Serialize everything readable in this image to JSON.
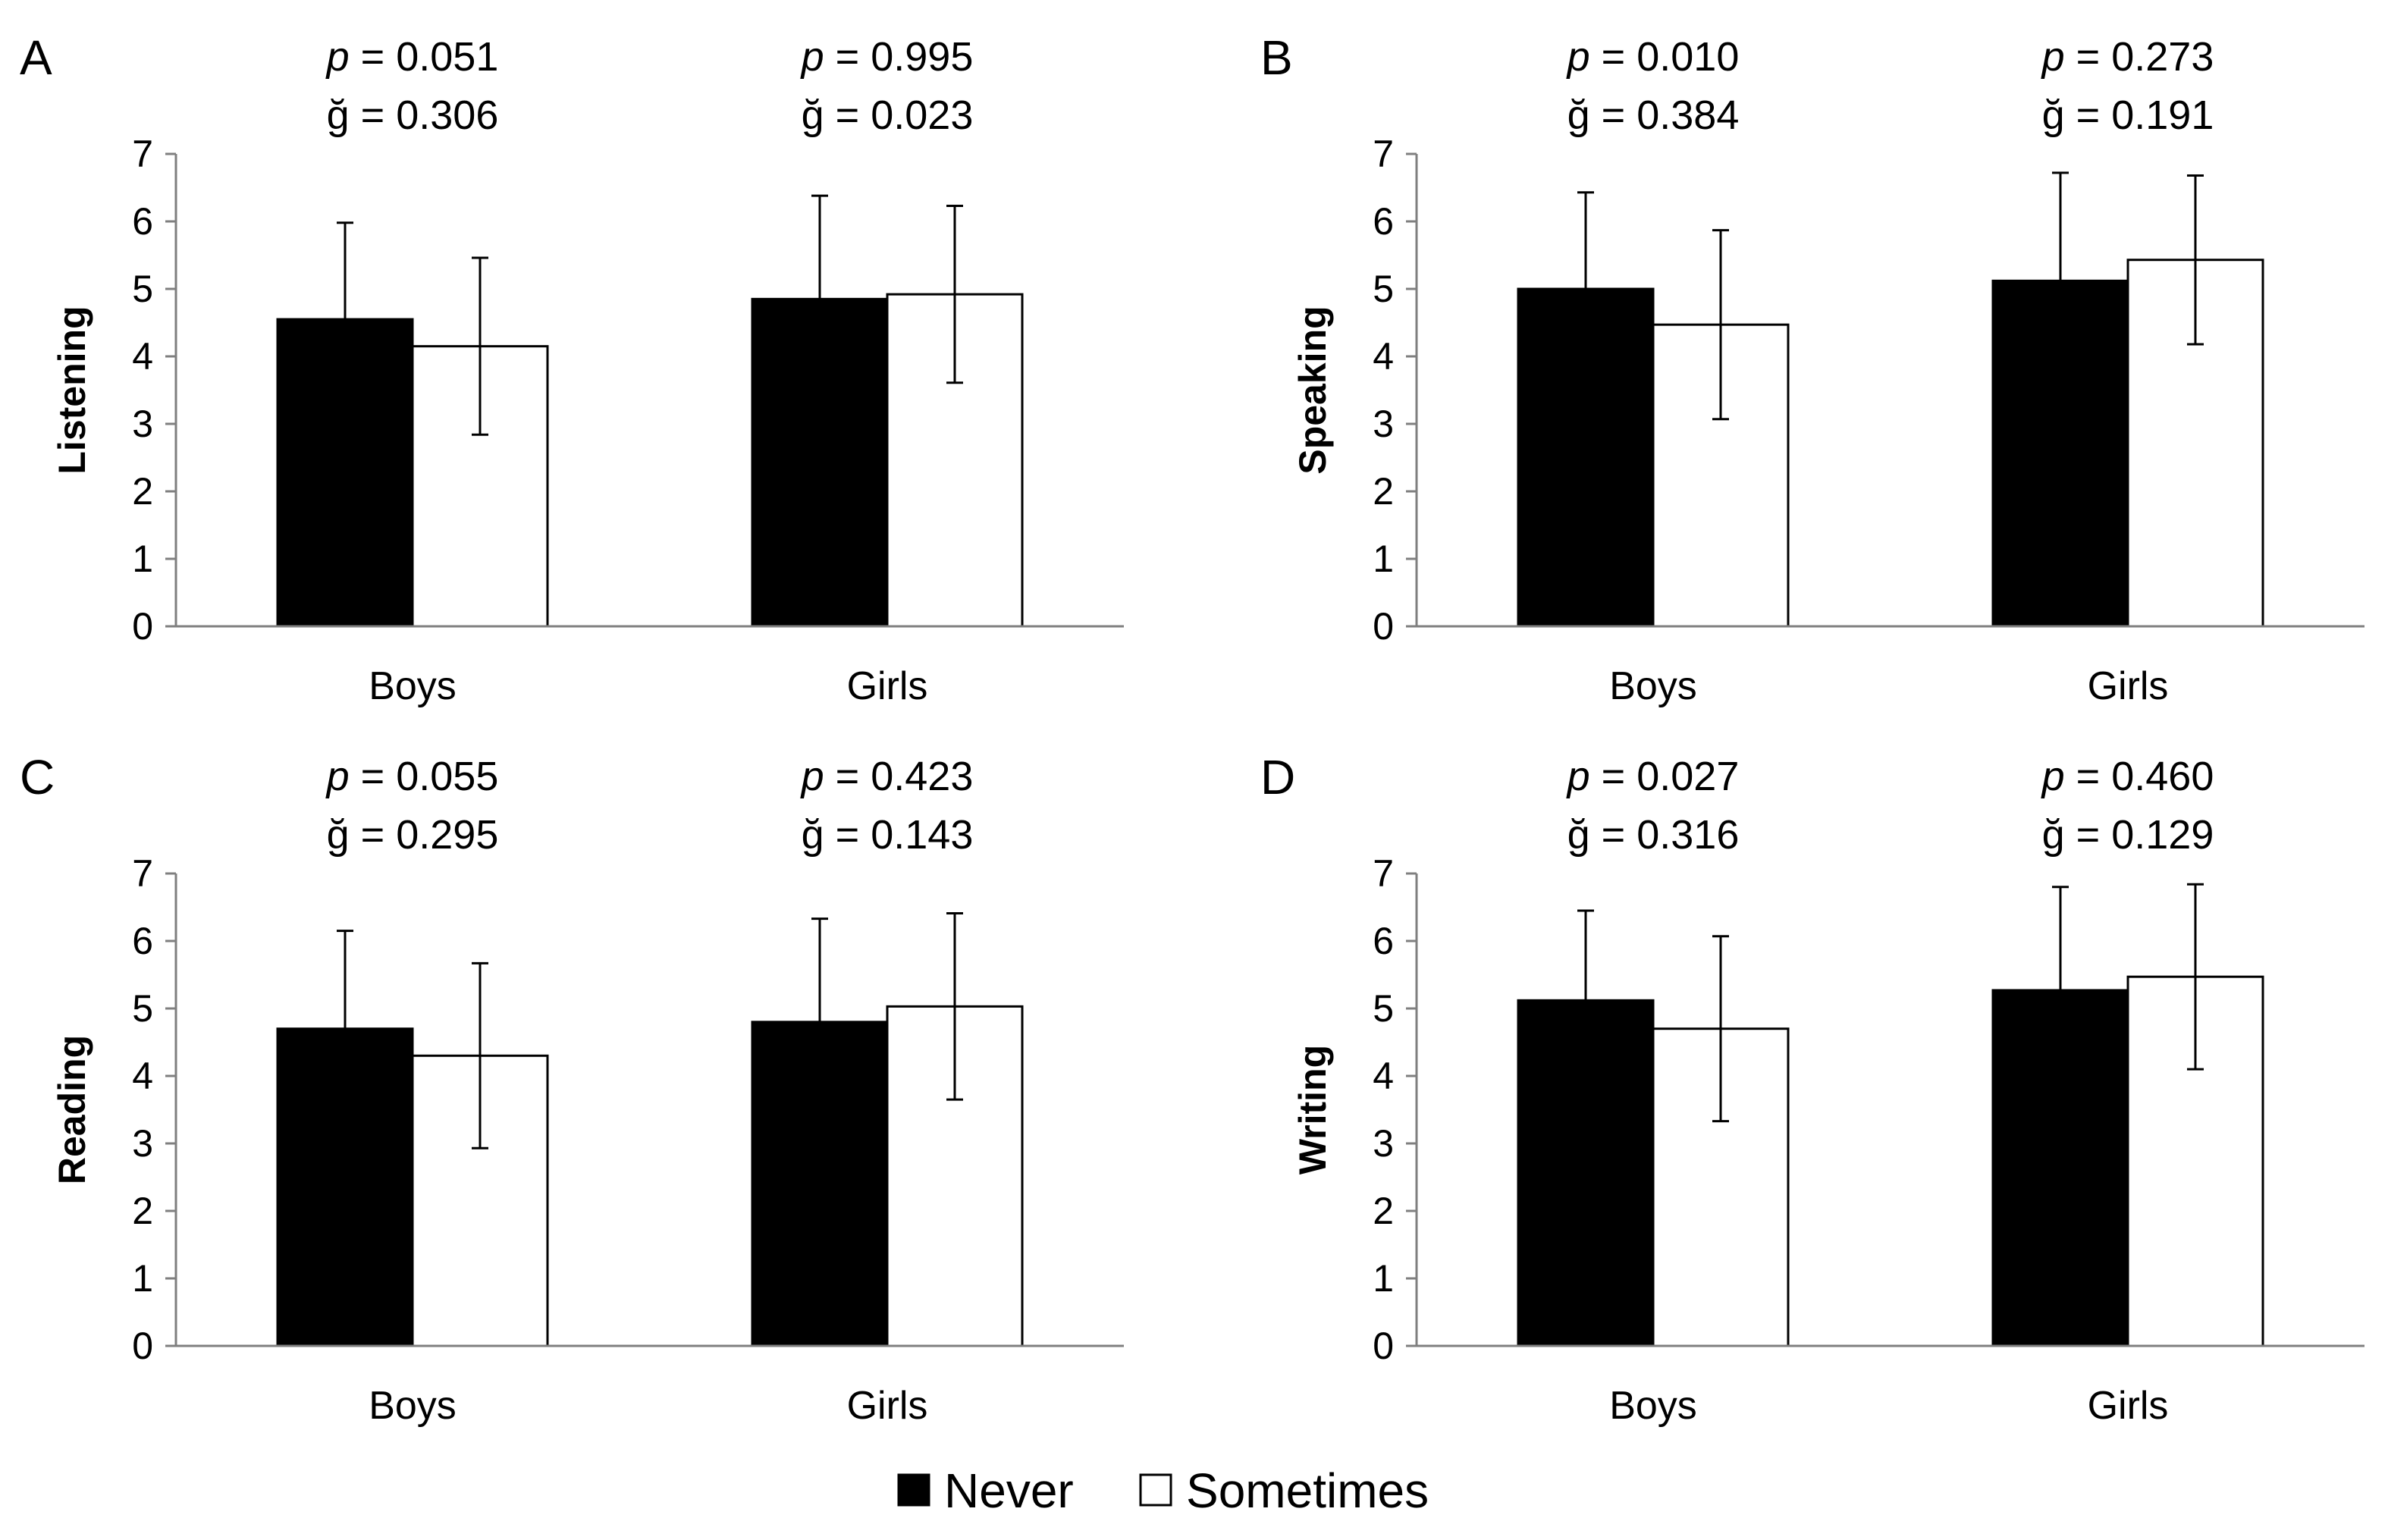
{
  "chart_data": [
    {
      "type": "bar",
      "panel": "A",
      "ylabel": "Listening",
      "categories": [
        "Boys",
        "Girls"
      ],
      "ylim": [
        0,
        7
      ],
      "yticks": [
        "0",
        "1",
        "2",
        "3",
        "4",
        "5",
        "6",
        "7"
      ],
      "series": [
        {
          "name": "Never",
          "values": [
            4.55,
            4.85
          ],
          "error": [
            1.43,
            1.53
          ]
        },
        {
          "name": "Sometimes",
          "values": [
            4.15,
            4.92
          ],
          "error": [
            1.31,
            1.31
          ]
        }
      ],
      "annotations": [
        {
          "p_label": "p",
          "p_rest": " = 0.051",
          "g": "ğ = 0.306"
        },
        {
          "p_label": "p",
          "p_rest": " = 0.995",
          "g": "ğ = 0.023"
        }
      ]
    },
    {
      "type": "bar",
      "panel": "B",
      "ylabel": "Speaking",
      "categories": [
        "Boys",
        "Girls"
      ],
      "ylim": [
        0,
        7
      ],
      "yticks": [
        "0",
        "1",
        "2",
        "3",
        "4",
        "5",
        "6",
        "7"
      ],
      "series": [
        {
          "name": "Never",
          "values": [
            5.0,
            5.12
          ],
          "error": [
            1.43,
            1.6
          ]
        },
        {
          "name": "Sometimes",
          "values": [
            4.47,
            5.43
          ],
          "error": [
            1.4,
            1.25
          ]
        }
      ],
      "annotations": [
        {
          "p_label": "p",
          "p_rest": " = 0.010",
          "g": "ğ = 0.384"
        },
        {
          "p_label": "p",
          "p_rest": " = 0.273",
          "g": "ğ = 0.191"
        }
      ]
    },
    {
      "type": "bar",
      "panel": "C",
      "ylabel": "Reading",
      "categories": [
        "Boys",
        "Girls"
      ],
      "ylim": [
        0,
        7
      ],
      "yticks": [
        "0",
        "1",
        "2",
        "3",
        "4",
        "5",
        "6",
        "7"
      ],
      "series": [
        {
          "name": "Never",
          "values": [
            4.7,
            4.8
          ],
          "error": [
            1.45,
            1.53
          ]
        },
        {
          "name": "Sometimes",
          "values": [
            4.3,
            5.03
          ],
          "error": [
            1.37,
            1.38
          ]
        }
      ],
      "annotations": [
        {
          "p_label": "p",
          "p_rest": " = 0.055",
          "g": "ğ = 0.295"
        },
        {
          "p_label": "p",
          "p_rest": " = 0.423",
          "g": "ğ = 0.143"
        }
      ]
    },
    {
      "type": "bar",
      "panel": "D",
      "ylabel": "Writing",
      "categories": [
        "Boys",
        "Girls"
      ],
      "ylim": [
        0,
        7
      ],
      "yticks": [
        "0",
        "1",
        "2",
        "3",
        "4",
        "5",
        "6",
        "7"
      ],
      "series": [
        {
          "name": "Never",
          "values": [
            5.12,
            5.27
          ],
          "error": [
            1.33,
            1.53
          ]
        },
        {
          "name": "Sometimes",
          "values": [
            4.7,
            5.47
          ],
          "error": [
            1.37,
            1.37
          ]
        }
      ],
      "annotations": [
        {
          "p_label": "p",
          "p_rest": " = 0.027",
          "g": "ğ = 0.316"
        },
        {
          "p_label": "p",
          "p_rest": " = 0.460",
          "g": "ğ = 0.129"
        }
      ]
    }
  ],
  "legend": {
    "position": "bottom-center",
    "items": [
      {
        "label": "Never",
        "color": "#000000"
      },
      {
        "label": "Sometimes",
        "color": "#ffffff"
      }
    ]
  },
  "colors": {
    "never": "#000000",
    "sometimes": "#ffffff",
    "axis": "#7f7f7f"
  }
}
